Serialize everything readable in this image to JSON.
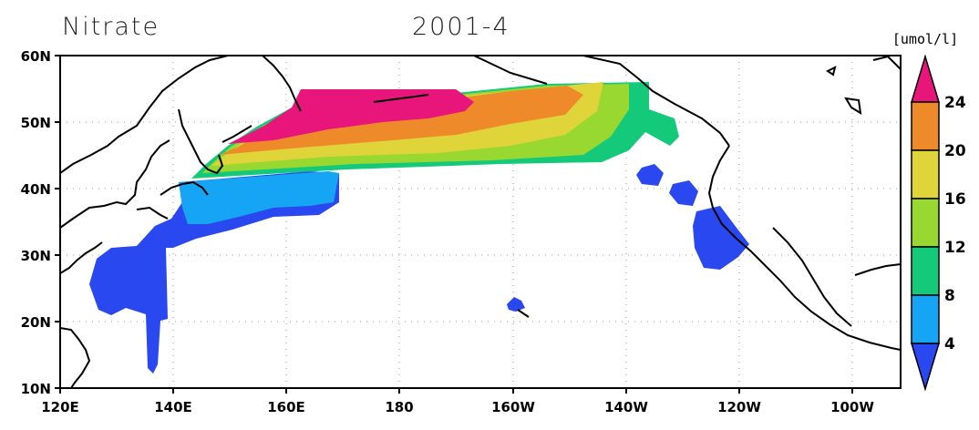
{
  "title": {
    "variable": "Nitrate",
    "date": "2001-4"
  },
  "colorbar": {
    "units": "[umol/l]",
    "ticks": [
      "4",
      "8",
      "12",
      "16",
      "20",
      "24"
    ],
    "colors": [
      "#2a48f0",
      "#16a5f5",
      "#14c97a",
      "#98d830",
      "#dfd43a",
      "#ef8a2a",
      "#e8157a"
    ]
  },
  "axes": {
    "x_ticks": [
      "120E",
      "140E",
      "160E",
      "180",
      "160W",
      "140W",
      "120W",
      "100W"
    ],
    "y_ticks": [
      "10N",
      "20N",
      "30N",
      "40N",
      "50N",
      "60N"
    ],
    "lon_range": [
      120,
      270
    ],
    "lat_range": [
      10,
      60
    ]
  }
}
